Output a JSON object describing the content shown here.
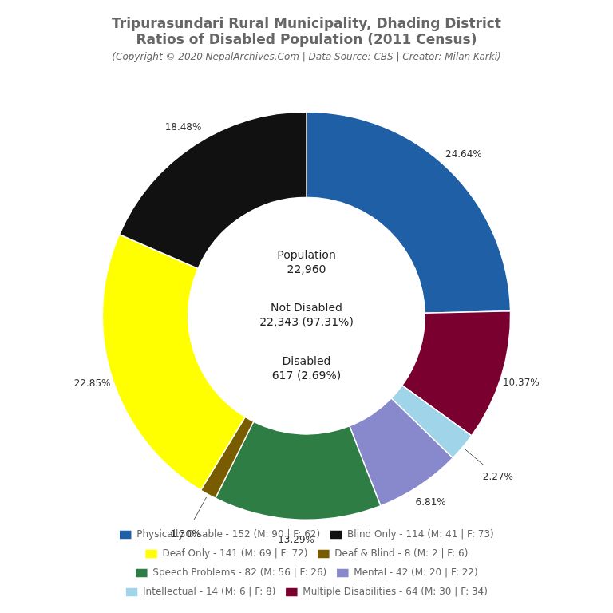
{
  "chart_data": {
    "type": "doughnut",
    "title": [
      "Tripurasundari Rural Municipality, Dhading District",
      "Ratios of Disabled Population (2011 Census)"
    ],
    "subtitle": "(Copyright © 2020 NepalArchives.Com | Data Source: CBS | Creator: Milan Karki)",
    "categories": [
      "Physically Disable - 152 (M: 90 | F: 62)",
      "Multiple Disabilities - 64 (M: 30 | F: 34)",
      "Intellectual - 14 (M: 6 | F: 8)",
      "Mental - 42 (M: 20 | F: 22)",
      "Speech Problems - 82 (M: 56 | F: 26)",
      "Deaf & Blind - 8 (M: 2 | F: 6)",
      "Deaf Only - 141 (M: 69 | F: 72)",
      "Blind Only - 114 (M: 41 | F: 73)"
    ],
    "values": [
      24.64,
      10.37,
      2.27,
      6.81,
      13.29,
      1.3,
      22.85,
      18.48
    ],
    "value_labels": [
      "24.64%",
      "10.37%",
      "2.27%",
      "6.81%",
      "13.29%",
      "1.30%",
      "22.85%",
      "18.48%"
    ],
    "colors": [
      "#1f5fa6",
      "#7a0030",
      "#a0d4e8",
      "#8888cc",
      "#2e7d45",
      "#7a5c00",
      "#ffff00",
      "#111111"
    ],
    "data_labels": true,
    "legend": "bottom",
    "annotations": [
      "Population\n22,960",
      "Not Disabled\n22,343 (97.31%)",
      "Disabled\n617 (2.69%)"
    ]
  }
}
